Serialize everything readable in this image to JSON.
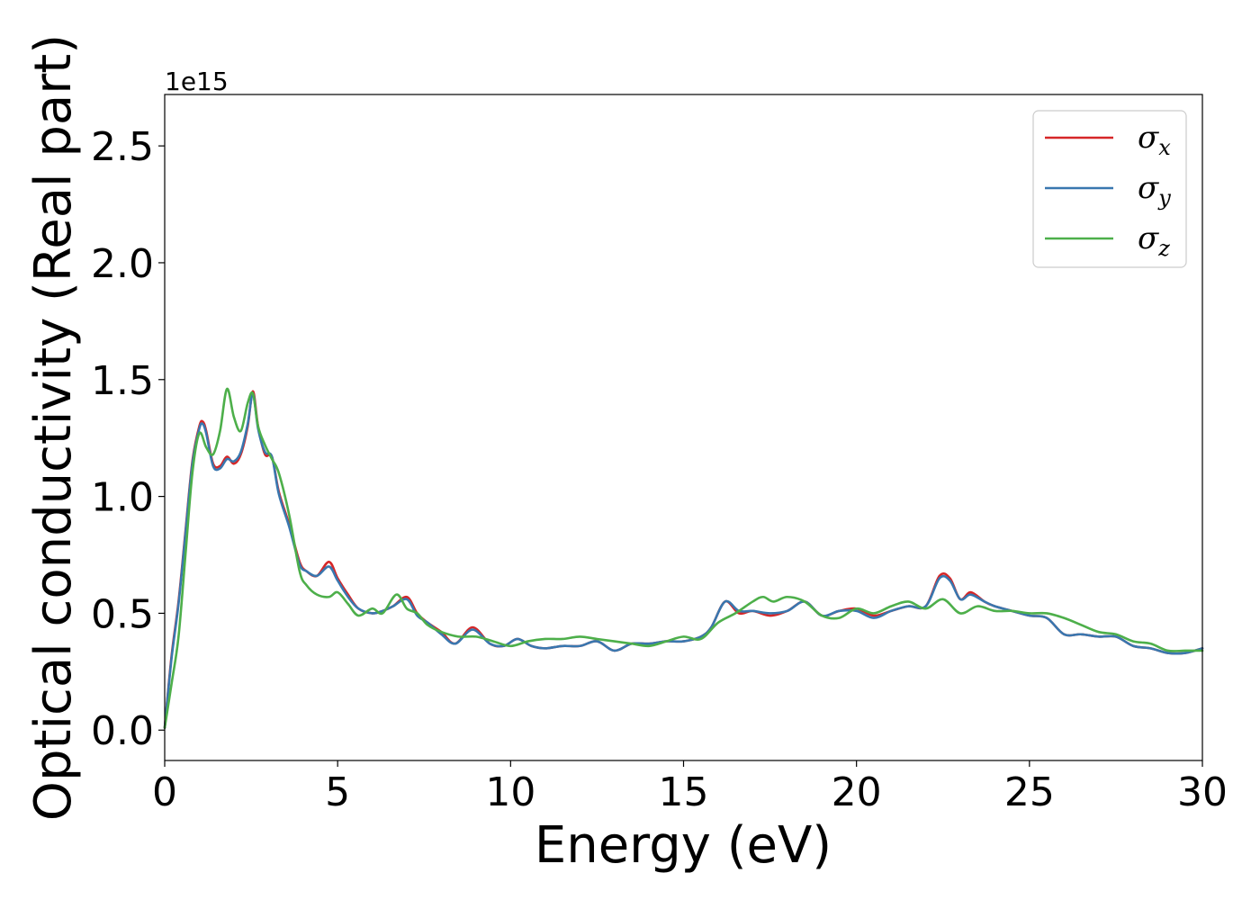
{
  "chart_data": {
    "type": "line",
    "xlabel": "Energy (eV)",
    "ylabel": "Optical conductivity (Real part)",
    "y_offset_text": "1e15",
    "y_scale": 1000000000000000.0,
    "xlim": [
      0,
      30
    ],
    "ylim": [
      -0.13,
      2.72
    ],
    "x_ticks": [
      0,
      5,
      10,
      15,
      20,
      25,
      30
    ],
    "x_tick_labels": [
      "0",
      "5",
      "10",
      "15",
      "20",
      "25",
      "30"
    ],
    "y_ticks": [
      0.0,
      0.5,
      1.0,
      1.5,
      2.0,
      2.5
    ],
    "y_tick_labels": [
      "0.0",
      "0.5",
      "1.0",
      "1.5",
      "2.0",
      "2.5"
    ],
    "grid": false,
    "legend_position": "top-right",
    "series": [
      {
        "name": "σx",
        "base": "σ",
        "sub": "x",
        "color": "#d62728",
        "x": [
          0,
          0.2,
          0.4,
          0.6,
          0.8,
          1.0,
          1.1,
          1.2,
          1.4,
          1.6,
          1.8,
          2.0,
          2.2,
          2.4,
          2.55,
          2.7,
          2.9,
          3.1,
          3.3,
          3.6,
          3.9,
          4.1,
          4.4,
          4.75,
          5.0,
          5.3,
          5.6,
          6.0,
          6.3,
          6.6,
          7.0,
          7.3,
          7.6,
          8.0,
          8.4,
          8.9,
          9.4,
          9.8,
          10.2,
          10.6,
          11.0,
          11.5,
          12.0,
          12.5,
          13.0,
          13.5,
          14.0,
          14.5,
          15.0,
          15.5,
          15.8,
          16.2,
          16.6,
          17.0,
          17.5,
          18.0,
          18.5,
          19.0,
          19.5,
          20.0,
          20.5,
          21.0,
          21.5,
          22.0,
          22.4,
          22.7,
          23.0,
          23.3,
          23.7,
          24.0,
          24.5,
          25.0,
          25.5,
          26.0,
          26.5,
          27.0,
          27.5,
          28.0,
          28.5,
          29.0,
          29.5,
          30.0
        ],
        "y": [
          0.01,
          0.32,
          0.55,
          0.85,
          1.15,
          1.3,
          1.32,
          1.28,
          1.14,
          1.13,
          1.17,
          1.14,
          1.18,
          1.3,
          1.45,
          1.3,
          1.18,
          1.17,
          1.02,
          0.88,
          0.72,
          0.68,
          0.66,
          0.72,
          0.65,
          0.58,
          0.52,
          0.5,
          0.51,
          0.53,
          0.57,
          0.5,
          0.46,
          0.42,
          0.37,
          0.44,
          0.37,
          0.36,
          0.39,
          0.36,
          0.35,
          0.36,
          0.36,
          0.38,
          0.34,
          0.37,
          0.37,
          0.38,
          0.38,
          0.4,
          0.44,
          0.55,
          0.5,
          0.51,
          0.49,
          0.51,
          0.55,
          0.49,
          0.51,
          0.52,
          0.49,
          0.51,
          0.53,
          0.53,
          0.66,
          0.65,
          0.56,
          0.59,
          0.55,
          0.53,
          0.51,
          0.49,
          0.48,
          0.41,
          0.41,
          0.4,
          0.4,
          0.36,
          0.35,
          0.33,
          0.33,
          0.35
        ]
      },
      {
        "name": "σy",
        "base": "σ",
        "sub": "y",
        "color": "#3977af",
        "x": [
          0,
          0.2,
          0.4,
          0.6,
          0.8,
          1.0,
          1.1,
          1.2,
          1.4,
          1.6,
          1.8,
          2.0,
          2.2,
          2.4,
          2.55,
          2.7,
          2.9,
          3.1,
          3.3,
          3.6,
          3.9,
          4.1,
          4.4,
          4.75,
          5.0,
          5.3,
          5.6,
          6.0,
          6.3,
          6.6,
          7.0,
          7.3,
          7.6,
          8.0,
          8.4,
          8.9,
          9.4,
          9.8,
          10.2,
          10.6,
          11.0,
          11.5,
          12.0,
          12.5,
          13.0,
          13.5,
          14.0,
          14.5,
          15.0,
          15.5,
          15.8,
          16.2,
          16.6,
          17.0,
          17.5,
          18.0,
          18.5,
          19.0,
          19.5,
          20.0,
          20.5,
          21.0,
          21.5,
          22.0,
          22.4,
          22.7,
          23.0,
          23.3,
          23.7,
          24.0,
          24.5,
          25.0,
          25.5,
          26.0,
          26.5,
          27.0,
          27.5,
          28.0,
          28.5,
          29.0,
          29.5,
          30.0
        ],
        "y": [
          0.01,
          0.31,
          0.54,
          0.84,
          1.14,
          1.29,
          1.31,
          1.27,
          1.13,
          1.12,
          1.16,
          1.15,
          1.19,
          1.31,
          1.44,
          1.29,
          1.19,
          1.17,
          1.01,
          0.87,
          0.71,
          0.68,
          0.66,
          0.7,
          0.64,
          0.57,
          0.52,
          0.5,
          0.51,
          0.53,
          0.56,
          0.49,
          0.46,
          0.41,
          0.37,
          0.43,
          0.37,
          0.36,
          0.39,
          0.36,
          0.35,
          0.36,
          0.36,
          0.38,
          0.34,
          0.37,
          0.37,
          0.38,
          0.38,
          0.4,
          0.44,
          0.55,
          0.51,
          0.51,
          0.5,
          0.51,
          0.55,
          0.49,
          0.51,
          0.51,
          0.48,
          0.51,
          0.53,
          0.53,
          0.65,
          0.64,
          0.56,
          0.58,
          0.55,
          0.53,
          0.51,
          0.49,
          0.48,
          0.41,
          0.41,
          0.4,
          0.4,
          0.36,
          0.35,
          0.33,
          0.33,
          0.35
        ]
      },
      {
        "name": "σz",
        "base": "σ",
        "sub": "z",
        "color": "#4daf4a",
        "x": [
          0,
          0.2,
          0.4,
          0.6,
          0.8,
          1.0,
          1.2,
          1.4,
          1.6,
          1.8,
          2.0,
          2.2,
          2.4,
          2.55,
          2.7,
          2.9,
          3.1,
          3.3,
          3.6,
          3.9,
          4.1,
          4.4,
          4.75,
          5.0,
          5.3,
          5.6,
          6.0,
          6.3,
          6.7,
          7.0,
          7.3,
          7.6,
          8.0,
          8.5,
          9.0,
          9.5,
          10.0,
          10.5,
          11.0,
          11.5,
          12.0,
          12.5,
          13.0,
          13.5,
          14.0,
          14.5,
          15.0,
          15.5,
          16.0,
          16.5,
          17.0,
          17.3,
          17.6,
          18.0,
          18.5,
          19.0,
          19.5,
          20.0,
          20.5,
          21.0,
          21.5,
          22.0,
          22.5,
          23.0,
          23.5,
          24.0,
          24.5,
          25.0,
          25.5,
          26.0,
          26.5,
          27.0,
          27.5,
          28.0,
          28.5,
          29.0,
          29.5,
          30.0
        ],
        "y": [
          0.01,
          0.2,
          0.4,
          0.75,
          1.1,
          1.27,
          1.21,
          1.18,
          1.28,
          1.46,
          1.34,
          1.28,
          1.4,
          1.44,
          1.3,
          1.22,
          1.16,
          1.1,
          0.92,
          0.68,
          0.62,
          0.58,
          0.57,
          0.59,
          0.54,
          0.49,
          0.52,
          0.5,
          0.58,
          0.52,
          0.5,
          0.45,
          0.42,
          0.4,
          0.4,
          0.38,
          0.36,
          0.38,
          0.39,
          0.39,
          0.4,
          0.39,
          0.38,
          0.37,
          0.36,
          0.38,
          0.4,
          0.39,
          0.46,
          0.5,
          0.55,
          0.57,
          0.55,
          0.57,
          0.55,
          0.49,
          0.48,
          0.52,
          0.5,
          0.53,
          0.55,
          0.52,
          0.56,
          0.5,
          0.53,
          0.51,
          0.51,
          0.5,
          0.5,
          0.48,
          0.45,
          0.42,
          0.41,
          0.38,
          0.37,
          0.34,
          0.34,
          0.34
        ]
      }
    ]
  }
}
